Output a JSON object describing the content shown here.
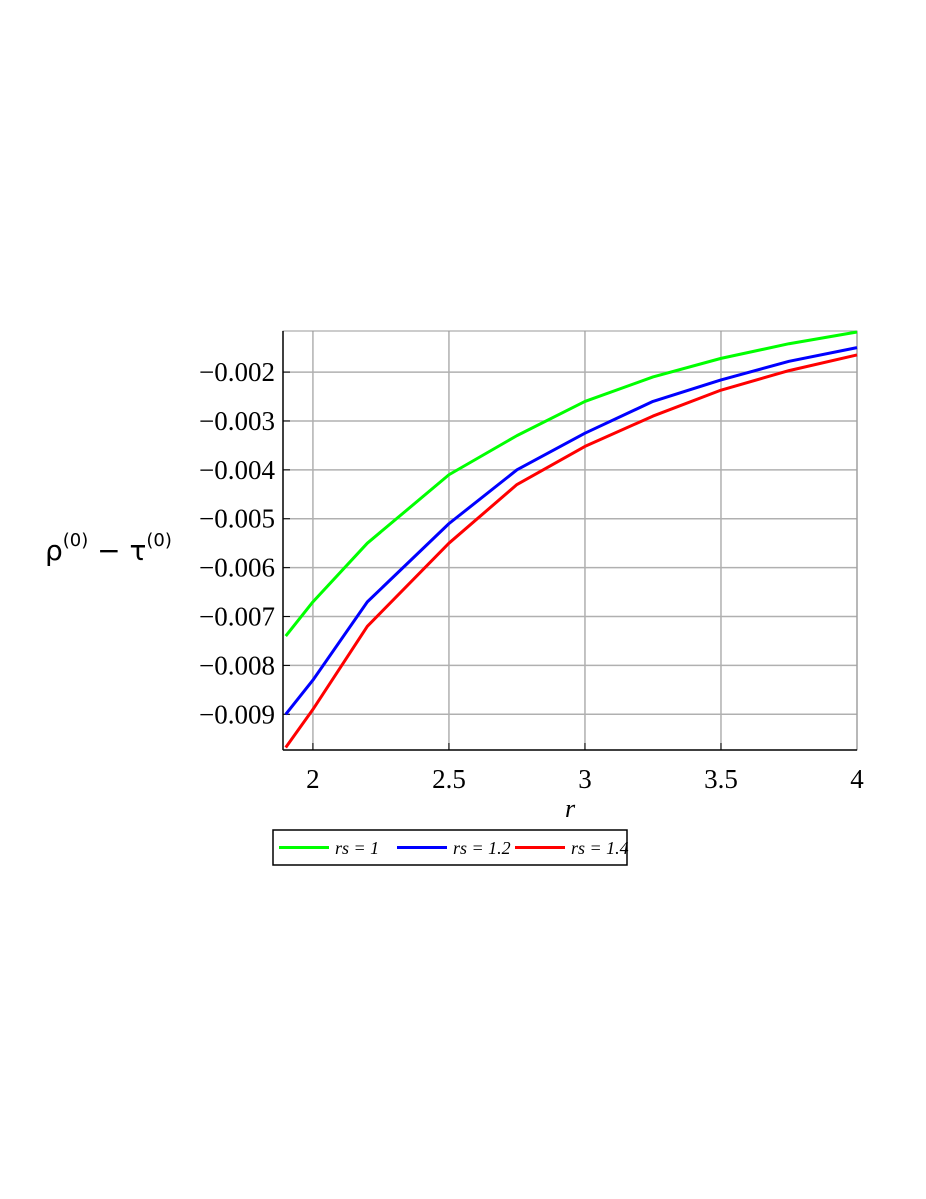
{
  "chart_data": {
    "type": "line",
    "x_label": "r",
    "y_label": [
      "ρ",
      "(0)",
      " − τ",
      "(0)"
    ],
    "x": [
      1.9,
      2.0,
      2.2,
      2.5,
      2.75,
      3.0,
      3.25,
      3.5,
      3.75,
      4.0
    ],
    "series": [
      {
        "name": "rs = 1",
        "color": "#00ff00",
        "values": [
          -0.0074,
          -0.0067,
          -0.0055,
          -0.0041,
          -0.0033,
          -0.0026,
          -0.0021,
          -0.00172,
          -0.00142,
          -0.00118
        ]
      },
      {
        "name": "rs = 1.2",
        "color": "#0000ff",
        "values": [
          -0.009,
          -0.0083,
          -0.0067,
          -0.0051,
          -0.004,
          -0.00325,
          -0.0026,
          -0.00216,
          -0.00178,
          -0.0015
        ]
      },
      {
        "name": "rs = 1.4",
        "color": "#ff0000",
        "values": [
          -0.00968,
          -0.0089,
          -0.0072,
          -0.0055,
          -0.0043,
          -0.00352,
          -0.0029,
          -0.00237,
          -0.00197,
          -0.00165
        ]
      }
    ],
    "xlim": [
      1.89,
      4.0
    ],
    "ylim": [
      -0.00973,
      -0.00116
    ],
    "xticks": [
      2,
      2.5,
      3,
      3.5,
      4
    ],
    "yticks": [
      {
        "value": -0.009,
        "label": "−0.009"
      },
      {
        "value": -0.008,
        "label": "−0.008"
      },
      {
        "value": -0.007,
        "label": "−0.007"
      },
      {
        "value": -0.006,
        "label": "−0.006"
      },
      {
        "value": -0.005,
        "label": "−0.005"
      },
      {
        "value": -0.004,
        "label": "−0.004"
      },
      {
        "value": -0.003,
        "label": "−0.003"
      },
      {
        "value": -0.002,
        "label": "−0.002"
      }
    ],
    "grid": true,
    "legend": "bottom"
  }
}
